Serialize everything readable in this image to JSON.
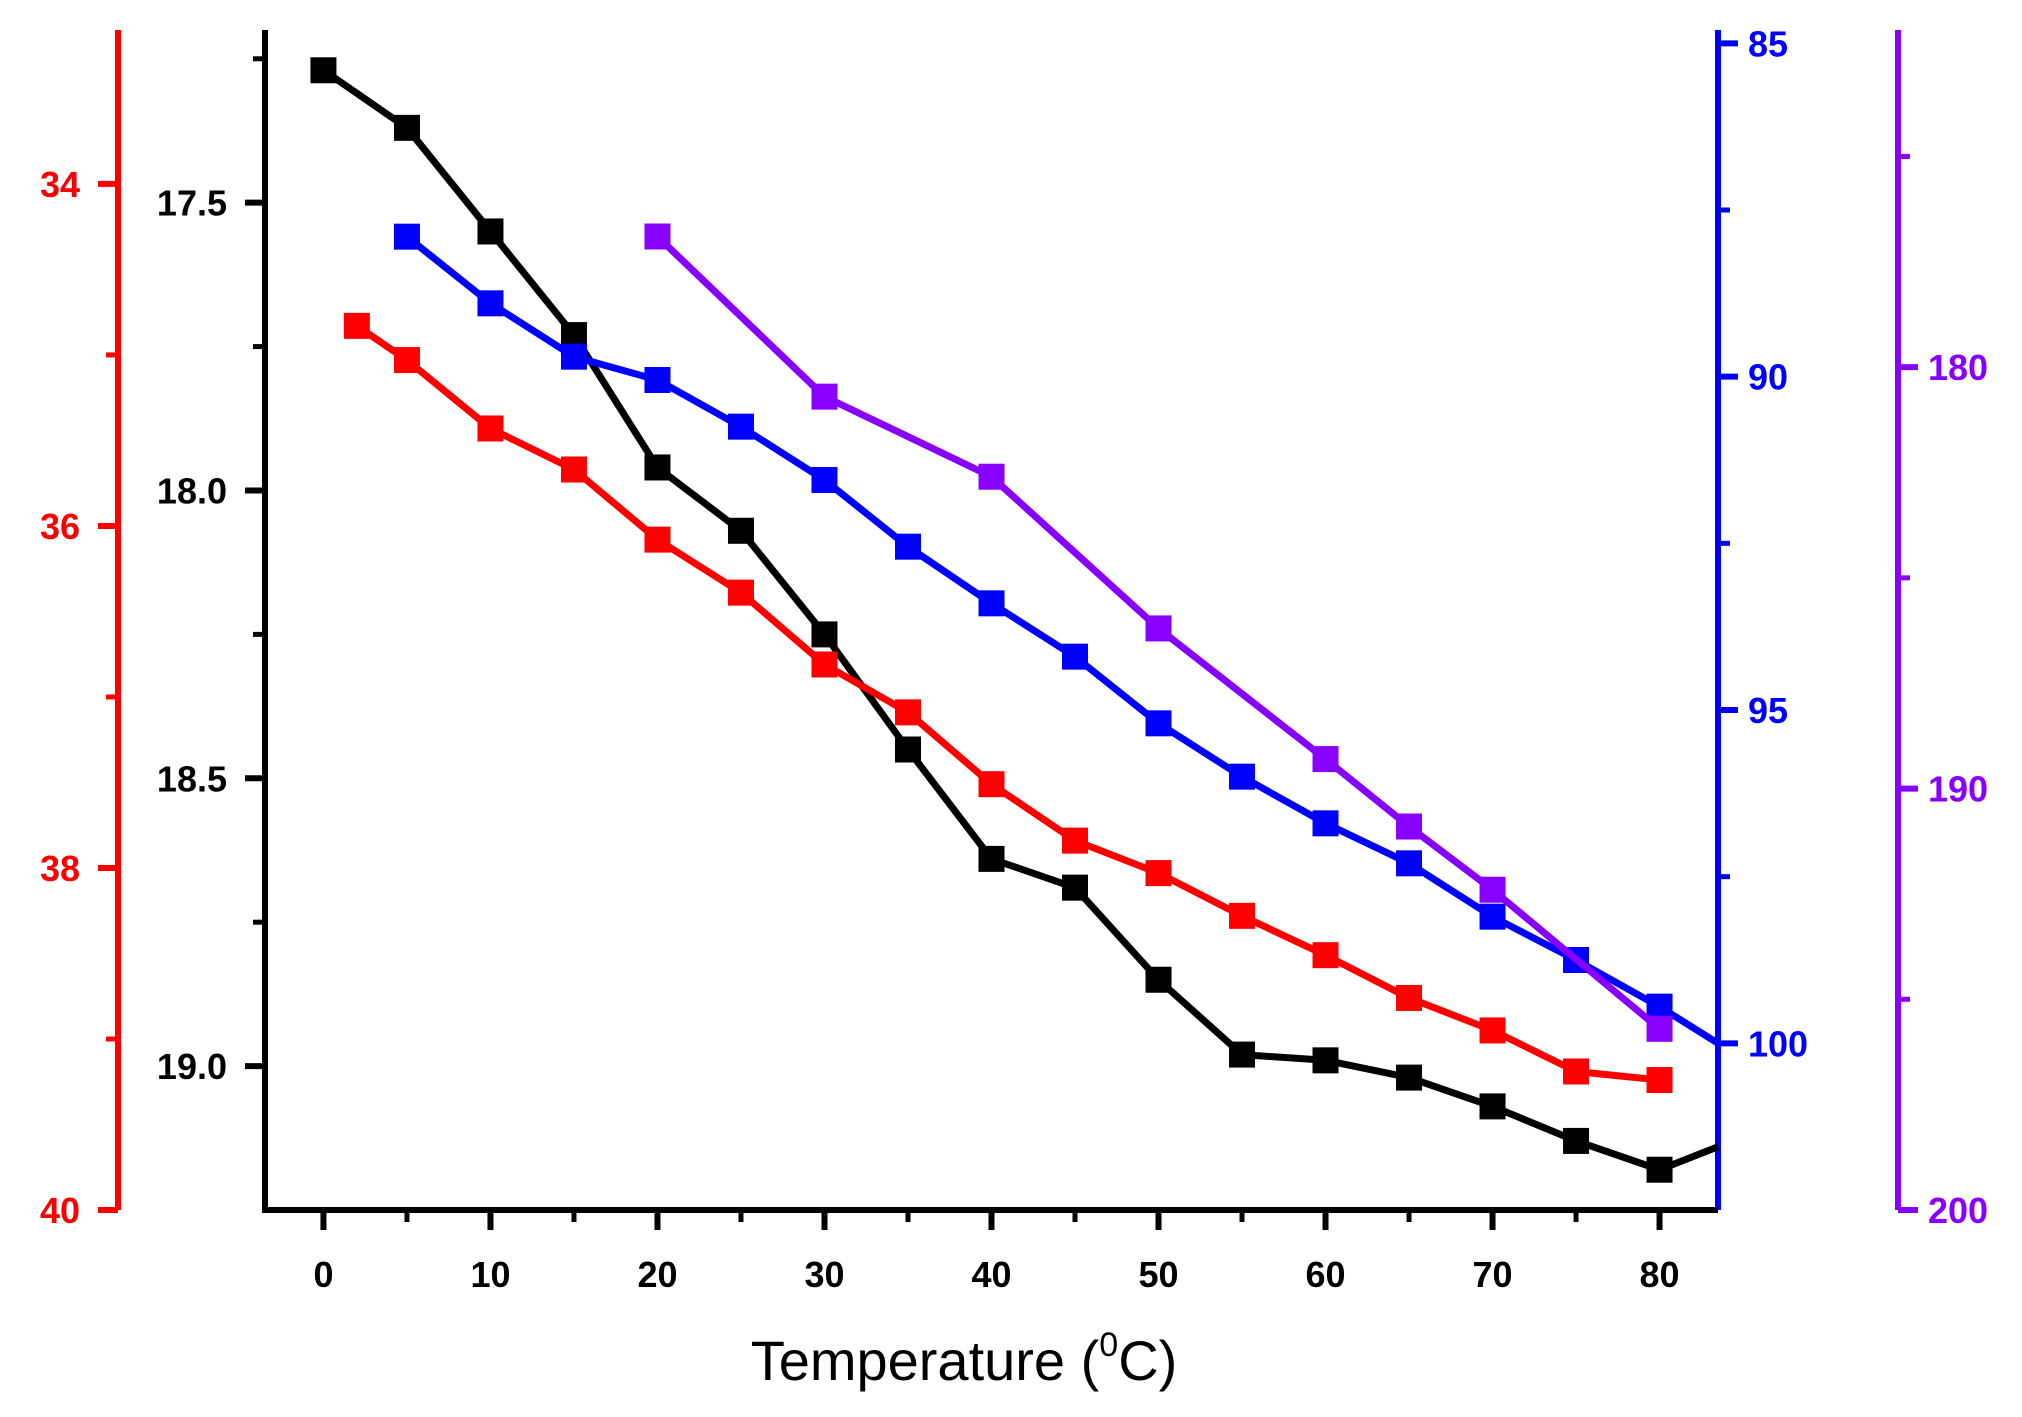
{
  "chart_data": {
    "type": "line",
    "xlabel": "Temperature (",
    "xlabel_sup": "0",
    "xlabel_unit": "C)",
    "x_ticks": [
      "0",
      "10",
      "20",
      "30",
      "40",
      "50",
      "60",
      "70",
      "80"
    ],
    "x_range": [
      -3.5,
      83.5
    ],
    "axes": [
      {
        "id": "left-black",
        "side": "left-inner",
        "color": "#000000",
        "range": [
          17.2,
          19.25
        ],
        "inverted": true,
        "tick_values": [
          17.5,
          18.0,
          18.5,
          19.0
        ],
        "tick_labels": [
          "17.5",
          "18.0",
          "18.5",
          "19.0"
        ],
        "minor_values": [
          17.25,
          17.75,
          18.25,
          18.75
        ]
      },
      {
        "id": "left-red",
        "side": "left-outer",
        "color": "#ff0000",
        "range": [
          33.1,
          40
        ],
        "inverted": true,
        "tick_values": [
          34,
          36,
          38,
          40
        ],
        "tick_labels": [
          "34",
          "36",
          "38",
          "40"
        ],
        "minor_values": [
          35,
          37,
          39
        ]
      },
      {
        "id": "right-blue",
        "side": "right-inner",
        "color": "#0000ff",
        "range": [
          84.8,
          102.5
        ],
        "inverted": true,
        "tick_values": [
          85,
          90,
          95,
          100
        ],
        "tick_labels": [
          "85",
          "90",
          "95",
          "100"
        ],
        "minor_values": [
          87.5,
          92.5,
          97.5
        ]
      },
      {
        "id": "right-purple",
        "side": "right-outer",
        "color": "#8800ff",
        "range": [
          172,
          200
        ],
        "inverted": true,
        "tick_values": [
          180,
          190,
          200
        ],
        "tick_labels": [
          "180",
          "190",
          "200"
        ],
        "minor_values": [
          175,
          185,
          195
        ]
      }
    ],
    "series": [
      {
        "name": "black",
        "axis": "left-black",
        "color": "#000000",
        "x": [
          0,
          5,
          10,
          15,
          20,
          25,
          30,
          35,
          40,
          45,
          50,
          55,
          60,
          65,
          70,
          75,
          80,
          83.5
        ],
        "y": [
          17.27,
          17.37,
          17.55,
          17.73,
          17.96,
          18.07,
          18.25,
          18.45,
          18.64,
          18.69,
          18.85,
          18.98,
          18.99,
          19.02,
          19.07,
          19.13,
          19.18,
          19.14
        ],
        "markers": [
          true,
          true,
          true,
          true,
          true,
          true,
          true,
          true,
          true,
          true,
          true,
          true,
          true,
          true,
          true,
          true,
          true,
          false
        ]
      },
      {
        "name": "red",
        "axis": "left-red",
        "color": "#ff0000",
        "x": [
          2,
          5,
          10,
          15,
          20,
          25,
          30,
          35,
          40,
          45,
          50,
          55,
          60,
          65,
          70,
          75,
          80
        ],
        "y": [
          34.83,
          35.03,
          35.43,
          35.67,
          36.08,
          36.39,
          36.81,
          37.09,
          37.51,
          37.84,
          38.03,
          38.28,
          38.51,
          38.76,
          38.95,
          39.19,
          39.24
        ]
      },
      {
        "name": "blue",
        "axis": "right-blue",
        "color": "#0000ff",
        "x": [
          5,
          10,
          15,
          20,
          25,
          30,
          35,
          40,
          45,
          50,
          55,
          60,
          65,
          70,
          75,
          80,
          83.5
        ],
        "y": [
          87.9,
          88.9,
          89.7,
          90.05,
          90.75,
          91.55,
          92.55,
          93.4,
          94.2,
          95.2,
          96.0,
          96.7,
          97.3,
          98.1,
          98.75,
          99.45,
          100.0
        ],
        "markers": [
          true,
          true,
          true,
          true,
          true,
          true,
          true,
          true,
          true,
          true,
          true,
          true,
          true,
          true,
          true,
          true,
          false
        ]
      },
      {
        "name": "purple",
        "axis": "right-purple",
        "color": "#8800ff",
        "x": [
          20,
          30,
          40,
          50,
          60,
          65,
          70,
          80
        ],
        "y": [
          176.9,
          180.7,
          182.6,
          186.2,
          189.3,
          190.9,
          192.4,
          195.7
        ]
      }
    ]
  }
}
